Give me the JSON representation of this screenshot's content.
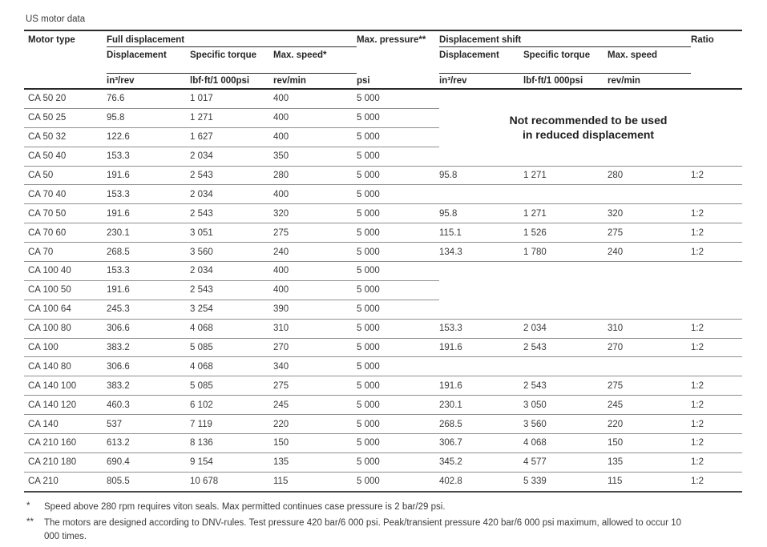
{
  "title": "US motor data",
  "table": {
    "header": {
      "motor_type": "Motor type",
      "full_group": "Full displacement",
      "max_pressure": "Max. pressure**",
      "shift_group": "Displacement shift",
      "ratio": "Ratio",
      "sub": {
        "displacement": "Displacement",
        "specific_torque": "Specific torque",
        "max_speed_full": "Max. speed*",
        "max_speed_shift": "Max. speed"
      },
      "units": {
        "displacement": "in³/rev",
        "torque": "lbf·ft/1 000psi",
        "speed": "rev/min",
        "pressure": "psi"
      }
    },
    "note": {
      "line1": "Not recommended to be used",
      "line2": "in reduced displacement"
    },
    "rows": [
      {
        "motor": "CA 50 20",
        "full": [
          "76.6",
          "1 017",
          "400"
        ],
        "pressure": "5 000"
      },
      {
        "motor": "CA 50 25",
        "full": [
          "95.8",
          "1 271",
          "400"
        ],
        "pressure": "5 000"
      },
      {
        "motor": "CA 50 32",
        "full": [
          "122.6",
          "1 627",
          "400"
        ],
        "pressure": "5 000"
      },
      {
        "motor": "CA 50 40",
        "full": [
          "153.3",
          "2 034",
          "350"
        ],
        "pressure": "5 000"
      },
      {
        "motor": "CA 50",
        "full": [
          "191.6",
          "2 543",
          "280"
        ],
        "pressure": "5 000",
        "shift": [
          "95.8",
          "1 271",
          "280"
        ],
        "ratio": "1:2"
      },
      {
        "motor": "CA 70 40",
        "full": [
          "153.3",
          "2 034",
          "400"
        ],
        "pressure": "5 000"
      },
      {
        "motor": "CA 70 50",
        "full": [
          "191.6",
          "2 543",
          "320"
        ],
        "pressure": "5 000",
        "shift": [
          "95.8",
          "1 271",
          "320"
        ],
        "ratio": "1:2"
      },
      {
        "motor": "CA 70 60",
        "full": [
          "230.1",
          "3 051",
          "275"
        ],
        "pressure": "5 000",
        "shift": [
          "115.1",
          "1 526",
          "275"
        ],
        "ratio": "1:2"
      },
      {
        "motor": "CA 70",
        "full": [
          "268.5",
          "3 560",
          "240"
        ],
        "pressure": "5 000",
        "shift": [
          "134.3",
          "1 780",
          "240"
        ],
        "ratio": "1:2"
      },
      {
        "motor": "CA 100 40",
        "full": [
          "153.3",
          "2 034",
          "400"
        ],
        "pressure": "5 000"
      },
      {
        "motor": "CA 100 50",
        "full": [
          "191.6",
          "2 543",
          "400"
        ],
        "pressure": "5 000"
      },
      {
        "motor": "CA 100 64",
        "full": [
          "245.3",
          "3 254",
          "390"
        ],
        "pressure": "5 000"
      },
      {
        "motor": "CA 100 80",
        "full": [
          "306.6",
          "4 068",
          "310"
        ],
        "pressure": "5 000",
        "shift": [
          "153.3",
          "2 034",
          "310"
        ],
        "ratio": "1:2"
      },
      {
        "motor": "CA 100",
        "full": [
          "383.2",
          "5 085",
          "270"
        ],
        "pressure": "5 000",
        "shift": [
          "191.6",
          "2 543",
          "270"
        ],
        "ratio": "1:2"
      },
      {
        "motor": "CA 140 80",
        "full": [
          "306.6",
          "4 068",
          "340"
        ],
        "pressure": "5 000"
      },
      {
        "motor": "CA 140 100",
        "full": [
          "383.2",
          "5 085",
          "275"
        ],
        "pressure": "5 000",
        "shift": [
          "191.6",
          "2 543",
          "275"
        ],
        "ratio": "1:2"
      },
      {
        "motor": "CA 140 120",
        "full": [
          "460.3",
          "6 102",
          "245"
        ],
        "pressure": "5 000",
        "shift": [
          "230.1",
          "3 050",
          "245"
        ],
        "ratio": "1:2"
      },
      {
        "motor": "CA 140",
        "full": [
          "537",
          "7 119",
          "220"
        ],
        "pressure": "5 000",
        "shift": [
          "268.5",
          "3 560",
          "220"
        ],
        "ratio": "1:2"
      },
      {
        "motor": "CA 210 160",
        "full": [
          "613.2",
          "8 136",
          "150"
        ],
        "pressure": "5 000",
        "shift": [
          "306.7",
          "4 068",
          "150"
        ],
        "ratio": "1:2"
      },
      {
        "motor": "CA 210 180",
        "full": [
          "690.4",
          "9 154",
          "135"
        ],
        "pressure": "5 000",
        "shift": [
          "345.2",
          "4 577",
          "135"
        ],
        "ratio": "1:2"
      },
      {
        "motor": "CA 210",
        "full": [
          "805.5",
          "10 678",
          "115"
        ],
        "pressure": "5 000",
        "shift": [
          "402.8",
          "5 339",
          "115"
        ],
        "ratio": "1:2"
      }
    ]
  },
  "footnotes": [
    {
      "marker": "*",
      "text": "Speed above 280 rpm requires viton seals. Max permitted continues case pressure is 2 bar/29 psi."
    },
    {
      "marker": "**",
      "text": "The motors are designed according to DNV-rules. Test pressure 420 bar/6 000 psi. Peak/transient pressure 420 bar/6 000 psi maximum, allowed to occur 10 000 times."
    }
  ]
}
